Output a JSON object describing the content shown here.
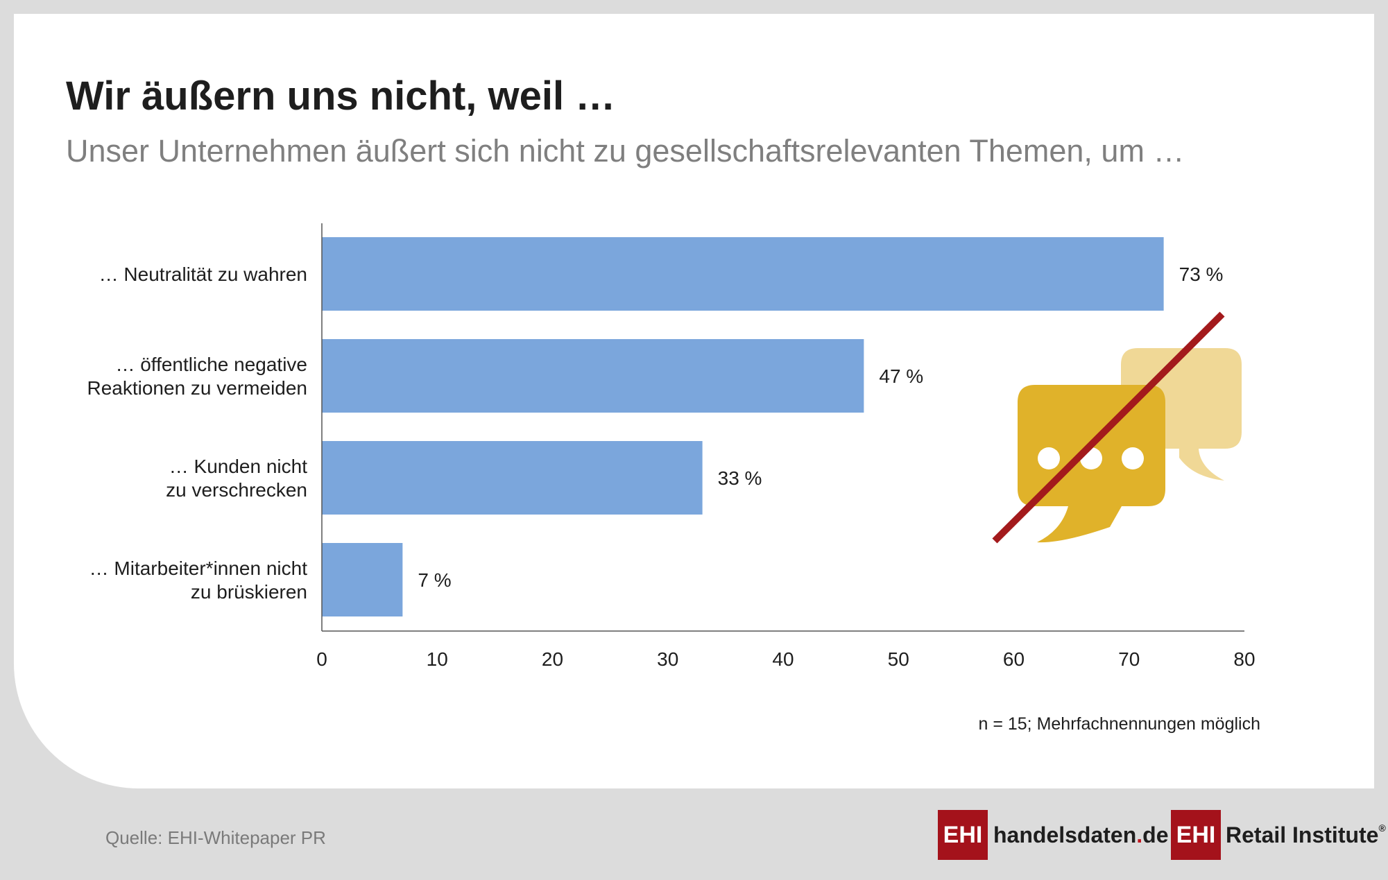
{
  "title": "Wir äußern uns nicht, weil …",
  "subtitle": "Unser Unternehmen äußert sich nicht zu gesellschaftsrelevanten Themen, um …",
  "note": "n = 15; Mehrfachnennungen möglich",
  "source": "Quelle: EHI-Whitepaper PR",
  "logos": {
    "ehi": "EHI",
    "handelsdaten_main": "handelsdaten",
    "handelsdaten_dot": ".",
    "handelsdaten_tld": "de",
    "retail": "Retail Institute",
    "registered": "®"
  },
  "colors": {
    "bar": "#7ba6dc",
    "icon_front": "#e0b22a",
    "icon_back": "#f0d896",
    "strike": "#a31a1c",
    "brand": "#a4121b"
  },
  "icons": [
    "speech-bubbles-icon",
    "strike-line-icon"
  ],
  "chart_data": {
    "type": "bar",
    "orientation": "horizontal",
    "categories": [
      [
        "… Neutralität zu wahren"
      ],
      [
        "… öffentliche negative",
        "Reaktionen zu vermeiden"
      ],
      [
        "… Kunden nicht",
        "zu verschrecken"
      ],
      [
        "… Mitarbeiter*innen nicht",
        "zu brüskieren"
      ]
    ],
    "values": [
      73,
      47,
      33,
      7
    ],
    "value_labels": [
      "73 %",
      "47 %",
      "33 %",
      "7 %"
    ],
    "xlim": [
      0,
      80
    ],
    "xticks": [
      0,
      10,
      20,
      30,
      40,
      50,
      60,
      70,
      80
    ],
    "grid": false,
    "legend": "none"
  }
}
